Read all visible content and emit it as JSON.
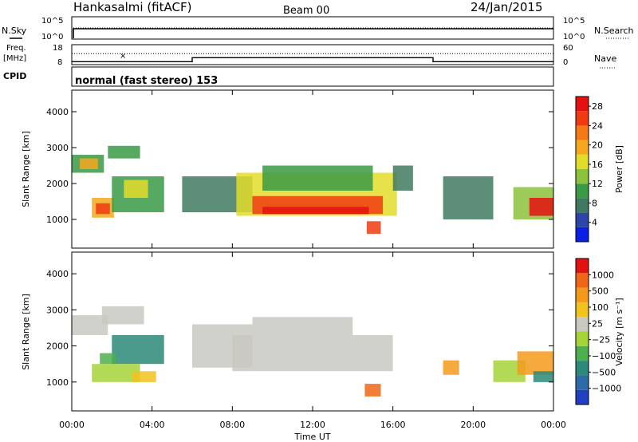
{
  "header": {
    "station": "Hankasalmi (fitACF)",
    "beam": "Beam 00",
    "date": "24/Jan/2015"
  },
  "noise_panel": {
    "left_label": "N.Sky",
    "right_label": "N.Search",
    "tick_top": "10^5",
    "tick_bottom": "10^0"
  },
  "freq_panel": {
    "left_label_line1": "Freq.",
    "left_label_line2": "[MHz]",
    "left_tick_top": "18",
    "left_tick_bottom": "8",
    "right_label": "Nave",
    "right_tick_top": "60",
    "right_tick_bottom": "0",
    "freq_steps": [
      {
        "t": 0,
        "v": 9.5
      },
      {
        "t": 6,
        "v": 9.5
      },
      {
        "t": 6,
        "v": 11.5
      },
      {
        "t": 18,
        "v": 11.5
      },
      {
        "t": 18,
        "v": 9.5
      },
      {
        "t": 24,
        "v": 9.5
      }
    ],
    "nave_level": 33
  },
  "cpid": {
    "label": "CPID",
    "text": "normal (fast stereo) 153"
  },
  "time_axis": {
    "xlabel": "Time UT",
    "ticks": [
      "00:00",
      "04:00",
      "08:00",
      "12:00",
      "16:00",
      "20:00",
      "00:00"
    ],
    "tick_hours": [
      0,
      4,
      8,
      12,
      16,
      20,
      24
    ]
  },
  "chart_data": [
    {
      "type": "heatmap",
      "title": "Power",
      "ylabel": "Slant Range [km]",
      "xlim": [
        0,
        24
      ],
      "ylim": [
        200,
        4600
      ],
      "yticks": [
        "1000",
        "2000",
        "3000",
        "4000"
      ],
      "ytick_values": [
        1000,
        2000,
        3000,
        4000
      ],
      "colorbar": {
        "label": "Power [dB]",
        "ticks": [
          "4",
          "8",
          "12",
          "16",
          "20",
          "24",
          "28"
        ],
        "tick_values": [
          4,
          8,
          12,
          16,
          20,
          24,
          28
        ],
        "range": [
          0,
          30
        ],
        "colors": [
          "#0a1fe6",
          "#2b46a6",
          "#3f7a60",
          "#3a9a45",
          "#8cc23c",
          "#e3dc2a",
          "#f5a81f",
          "#f47a18",
          "#ef3b12",
          "#e51010"
        ]
      },
      "regions": [
        {
          "t0": 0.0,
          "t1": 1.6,
          "r0": 2300,
          "r1": 2800,
          "v": 9
        },
        {
          "t0": 0.4,
          "t1": 1.3,
          "r0": 2400,
          "r1": 2700,
          "v": 20
        },
        {
          "t0": 1.8,
          "t1": 3.4,
          "r0": 2700,
          "r1": 3050,
          "v": 9
        },
        {
          "t0": 1.0,
          "t1": 2.1,
          "r0": 1050,
          "r1": 1600,
          "v": 18
        },
        {
          "t0": 1.2,
          "t1": 1.9,
          "r0": 1150,
          "r1": 1450,
          "v": 25
        },
        {
          "t0": 2.0,
          "t1": 4.6,
          "r0": 1200,
          "r1": 2200,
          "v": 10
        },
        {
          "t0": 2.6,
          "t1": 3.8,
          "r0": 1600,
          "r1": 2100,
          "v": 15
        },
        {
          "t0": 5.5,
          "t1": 9.0,
          "r0": 1200,
          "r1": 2200,
          "v": 8
        },
        {
          "t0": 8.2,
          "t1": 16.2,
          "r0": 1100,
          "r1": 2300,
          "v": 15
        },
        {
          "t0": 9.5,
          "t1": 15.0,
          "r0": 1800,
          "r1": 2500,
          "v": 9
        },
        {
          "t0": 9.0,
          "t1": 15.5,
          "r0": 1150,
          "r1": 1650,
          "v": 24
        },
        {
          "t0": 9.5,
          "t1": 14.8,
          "r0": 1150,
          "r1": 1350,
          "v": 28
        },
        {
          "t0": 14.7,
          "t1": 15.4,
          "r0": 600,
          "r1": 950,
          "v": 26
        },
        {
          "t0": 16.0,
          "t1": 17.0,
          "r0": 1800,
          "r1": 2500,
          "v": 8
        },
        {
          "t0": 18.5,
          "t1": 21.0,
          "r0": 1000,
          "r1": 2200,
          "v": 7
        },
        {
          "t0": 22.0,
          "t1": 24.0,
          "r0": 1000,
          "r1": 1900,
          "v": 14
        },
        {
          "t0": 22.8,
          "t1": 24.0,
          "r0": 1100,
          "r1": 1600,
          "v": 27
        }
      ]
    },
    {
      "type": "heatmap",
      "title": "Velocity",
      "ylabel": "Slant Range [km]",
      "xlim": [
        0,
        24
      ],
      "ylim": [
        200,
        4600
      ],
      "yticks": [
        "1000",
        "2000",
        "3000",
        "4000"
      ],
      "ytick_values": [
        1000,
        2000,
        3000,
        4000
      ],
      "colorbar": {
        "label": "Velocity [m s⁻¹]",
        "ticks": [
          "1000",
          "500",
          "100",
          "25",
          "−25",
          "−100",
          "−500",
          "−1000"
        ],
        "colors": [
          "#1f3fc4",
          "#2d6aa8",
          "#2c8a78",
          "#4db04d",
          "#a6d33a",
          "#c9c9c2",
          "#f2c21d",
          "#f49a1b",
          "#ef6616",
          "#e51010"
        ]
      },
      "regions": [
        {
          "t0": 0.0,
          "t1": 1.8,
          "r0": 2300,
          "r1": 2850,
          "c": "#c9c9c2"
        },
        {
          "t0": 1.5,
          "t1": 3.6,
          "r0": 2600,
          "r1": 3100,
          "c": "#c9c9c2"
        },
        {
          "t0": 2.0,
          "t1": 4.6,
          "r0": 1500,
          "r1": 2300,
          "c": "#2c8a78"
        },
        {
          "t0": 1.0,
          "t1": 3.4,
          "r0": 1000,
          "r1": 1500,
          "c": "#a6d33a"
        },
        {
          "t0": 3.0,
          "t1": 4.2,
          "r0": 1000,
          "r1": 1300,
          "c": "#f2c21d"
        },
        {
          "t0": 1.4,
          "t1": 2.2,
          "r0": 1500,
          "r1": 1800,
          "c": "#4db04d"
        },
        {
          "t0": 6.0,
          "t1": 9.0,
          "r0": 1400,
          "r1": 2600,
          "c": "#c9c9c2"
        },
        {
          "t0": 8.0,
          "t1": 16.0,
          "r0": 1300,
          "r1": 2300,
          "c": "#c9c9c2"
        },
        {
          "t0": 9.0,
          "t1": 14.0,
          "r0": 2300,
          "r1": 2800,
          "c": "#c9c9c2"
        },
        {
          "t0": 14.6,
          "t1": 15.4,
          "r0": 600,
          "r1": 950,
          "c": "#ef6616"
        },
        {
          "t0": 18.5,
          "t1": 19.3,
          "r0": 1200,
          "r1": 1600,
          "c": "#f49a1b"
        },
        {
          "t0": 21.0,
          "t1": 22.6,
          "r0": 1000,
          "r1": 1600,
          "c": "#a6d33a"
        },
        {
          "t0": 22.2,
          "t1": 24.0,
          "r0": 1200,
          "r1": 1850,
          "c": "#f49a1b"
        },
        {
          "t0": 23.0,
          "t1": 24.0,
          "r0": 1000,
          "r1": 1300,
          "c": "#2c8a78"
        }
      ]
    }
  ]
}
